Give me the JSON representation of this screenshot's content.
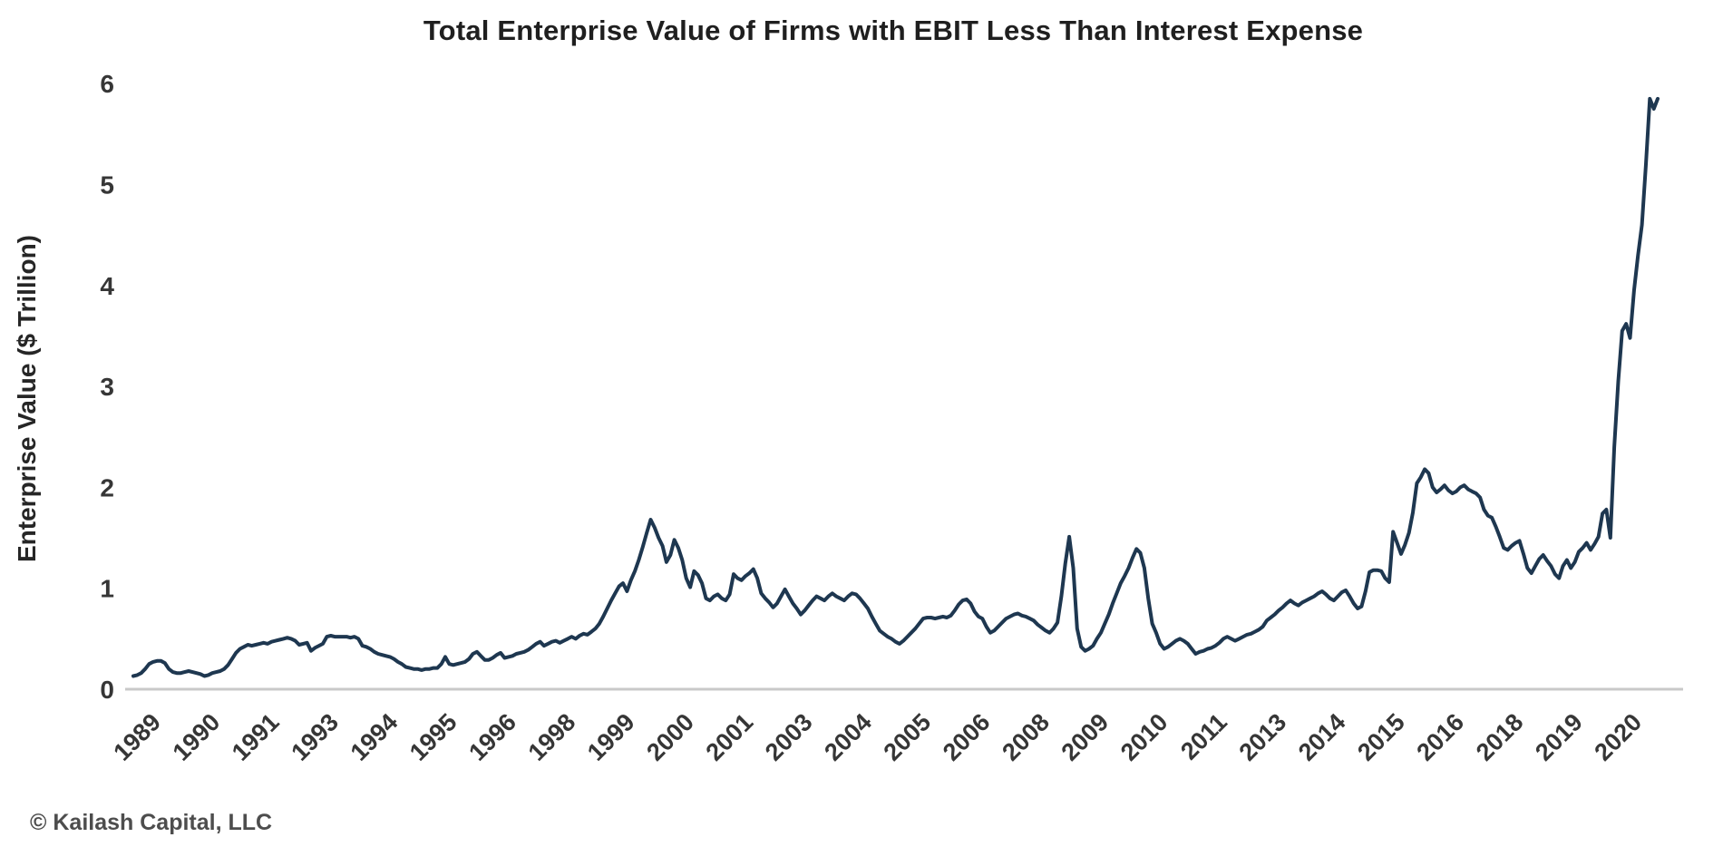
{
  "footer": "© Kailash Capital, LLC",
  "chart_data": {
    "type": "line",
    "title": "Total Enterprise Value of Firms with EBIT Less Than Interest Expense",
    "xlabel": "",
    "ylabel": "Enterprise Value ($ Trillion)",
    "ylim": [
      0,
      6
    ],
    "y_ticks": [
      0,
      1,
      2,
      3,
      4,
      5,
      6
    ],
    "grid": false,
    "legend_position": "none",
    "line_color": "#1e3750",
    "axis_line_color": "#c9c9c9",
    "x_start": "1989-01",
    "x_end": "2021-03",
    "freq": "monthly",
    "x_tick_first_month_index": 5,
    "x_tick_interval_months": 15,
    "x_tick_labels": [
      "1989",
      "1990",
      "1991",
      "1993",
      "1994",
      "1995",
      "1996",
      "1998",
      "1999",
      "2000",
      "2001",
      "2003",
      "2004",
      "2005",
      "2006",
      "2008",
      "2009",
      "2010",
      "2011",
      "2013",
      "2014",
      "2015",
      "2016",
      "2018",
      "2019",
      "2020"
    ],
    "series": [
      {
        "name": "Total Enterprise Value ($ Trillion)",
        "values": [
          0.13,
          0.14,
          0.16,
          0.2,
          0.25,
          0.27,
          0.28,
          0.28,
          0.26,
          0.2,
          0.17,
          0.16,
          0.16,
          0.17,
          0.18,
          0.17,
          0.16,
          0.15,
          0.13,
          0.14,
          0.16,
          0.17,
          0.18,
          0.2,
          0.24,
          0.3,
          0.36,
          0.4,
          0.42,
          0.44,
          0.43,
          0.44,
          0.45,
          0.46,
          0.45,
          0.47,
          0.48,
          0.49,
          0.5,
          0.51,
          0.5,
          0.48,
          0.44,
          0.45,
          0.46,
          0.38,
          0.41,
          0.43,
          0.45,
          0.52,
          0.53,
          0.52,
          0.52,
          0.52,
          0.52,
          0.51,
          0.52,
          0.5,
          0.43,
          0.42,
          0.4,
          0.37,
          0.35,
          0.34,
          0.33,
          0.32,
          0.3,
          0.27,
          0.25,
          0.22,
          0.21,
          0.2,
          0.2,
          0.19,
          0.2,
          0.2,
          0.21,
          0.21,
          0.25,
          0.32,
          0.25,
          0.24,
          0.25,
          0.26,
          0.27,
          0.3,
          0.35,
          0.37,
          0.33,
          0.29,
          0.29,
          0.31,
          0.34,
          0.36,
          0.31,
          0.32,
          0.33,
          0.35,
          0.36,
          0.37,
          0.39,
          0.42,
          0.45,
          0.47,
          0.43,
          0.45,
          0.47,
          0.48,
          0.46,
          0.48,
          0.5,
          0.52,
          0.5,
          0.53,
          0.55,
          0.54,
          0.57,
          0.6,
          0.65,
          0.72,
          0.8,
          0.88,
          0.95,
          1.02,
          1.05,
          0.97,
          1.08,
          1.17,
          1.28,
          1.41,
          1.55,
          1.68,
          1.6,
          1.5,
          1.42,
          1.26,
          1.33,
          1.48,
          1.4,
          1.28,
          1.1,
          1.01,
          1.17,
          1.13,
          1.05,
          0.9,
          0.88,
          0.92,
          0.94,
          0.9,
          0.88,
          0.94,
          1.14,
          1.1,
          1.08,
          1.12,
          1.15,
          1.19,
          1.1,
          0.95,
          0.9,
          0.86,
          0.81,
          0.85,
          0.92,
          0.99,
          0.92,
          0.85,
          0.8,
          0.74,
          0.78,
          0.83,
          0.88,
          0.92,
          0.9,
          0.88,
          0.92,
          0.95,
          0.92,
          0.9,
          0.88,
          0.92,
          0.95,
          0.94,
          0.9,
          0.85,
          0.8,
          0.72,
          0.65,
          0.58,
          0.55,
          0.52,
          0.5,
          0.47,
          0.45,
          0.48,
          0.52,
          0.56,
          0.6,
          0.65,
          0.7,
          0.71,
          0.71,
          0.7,
          0.71,
          0.72,
          0.71,
          0.73,
          0.78,
          0.84,
          0.88,
          0.89,
          0.85,
          0.77,
          0.72,
          0.7,
          0.62,
          0.56,
          0.58,
          0.62,
          0.66,
          0.7,
          0.72,
          0.74,
          0.75,
          0.73,
          0.72,
          0.7,
          0.68,
          0.64,
          0.61,
          0.58,
          0.56,
          0.6,
          0.66,
          0.92,
          1.25,
          1.51,
          1.2,
          0.6,
          0.42,
          0.38,
          0.4,
          0.43,
          0.5,
          0.56,
          0.65,
          0.74,
          0.85,
          0.95,
          1.05,
          1.12,
          1.2,
          1.3,
          1.39,
          1.35,
          1.2,
          0.9,
          0.65,
          0.56,
          0.45,
          0.4,
          0.42,
          0.45,
          0.48,
          0.5,
          0.48,
          0.45,
          0.4,
          0.35,
          0.37,
          0.38,
          0.4,
          0.41,
          0.43,
          0.46,
          0.5,
          0.52,
          0.5,
          0.48,
          0.5,
          0.52,
          0.54,
          0.55,
          0.57,
          0.59,
          0.62,
          0.68,
          0.71,
          0.74,
          0.78,
          0.81,
          0.85,
          0.88,
          0.85,
          0.83,
          0.86,
          0.88,
          0.9,
          0.92,
          0.95,
          0.97,
          0.94,
          0.9,
          0.88,
          0.92,
          0.96,
          0.98,
          0.92,
          0.85,
          0.8,
          0.82,
          0.97,
          1.16,
          1.18,
          1.18,
          1.17,
          1.1,
          1.06,
          1.56,
          1.45,
          1.34,
          1.43,
          1.55,
          1.75,
          2.04,
          2.1,
          2.18,
          2.14,
          2.0,
          1.95,
          1.98,
          2.02,
          1.97,
          1.94,
          1.96,
          2.0,
          2.02,
          1.98,
          1.96,
          1.94,
          1.9,
          1.78,
          1.72,
          1.7,
          1.61,
          1.51,
          1.4,
          1.38,
          1.42,
          1.45,
          1.47,
          1.34,
          1.2,
          1.15,
          1.22,
          1.29,
          1.33,
          1.27,
          1.22,
          1.14,
          1.1,
          1.22,
          1.28,
          1.2,
          1.26,
          1.36,
          1.4,
          1.45,
          1.38,
          1.44,
          1.51,
          1.74,
          1.78,
          1.5,
          2.4,
          3.05,
          3.55,
          3.62,
          3.48,
          3.95,
          4.3,
          4.6,
          5.2,
          5.85,
          5.75,
          5.85
        ]
      }
    ]
  }
}
